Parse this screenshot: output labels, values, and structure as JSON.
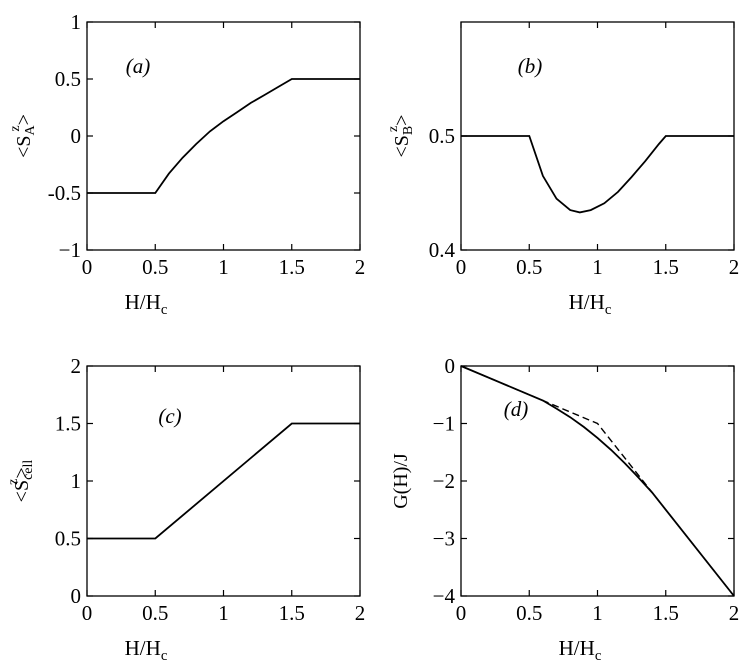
{
  "chart_data": [
    {
      "id": "a",
      "type": "line",
      "panel_label": "(a)",
      "xlabel": "H/H_c",
      "ylabel": "<S_A^z>",
      "xlim": [
        0,
        2
      ],
      "ylim": [
        -1,
        1
      ],
      "xticks": [
        0,
        0.5,
        1,
        1.5,
        2
      ],
      "yticks": [
        -1,
        -0.5,
        0,
        0.5,
        1
      ],
      "xtick_labels": [
        "0",
        "0.5",
        "1",
        "1.5",
        "2"
      ],
      "ytick_labels": [
        "−1",
        "-0.5",
        "0",
        "0.5",
        "1"
      ],
      "series": [
        {
          "style": "solid",
          "x": [
            0,
            0.5,
            0.6,
            0.7,
            0.8,
            0.9,
            1.0,
            1.1,
            1.2,
            1.3,
            1.4,
            1.5,
            2.0
          ],
          "y": [
            -0.5,
            -0.5,
            -0.33,
            -0.19,
            -0.07,
            0.04,
            0.13,
            0.21,
            0.29,
            0.36,
            0.43,
            0.5,
            0.5
          ]
        }
      ]
    },
    {
      "id": "b",
      "type": "line",
      "panel_label": "(b)",
      "xlabel": "H/H_c",
      "ylabel": "<S_B^z>",
      "xlim": [
        0,
        2
      ],
      "ylim": [
        0.4,
        0.6
      ],
      "xticks": [
        0,
        0.5,
        1,
        1.5,
        2
      ],
      "yticks": [
        0.4,
        0.5
      ],
      "xtick_labels": [
        "0",
        "0.5",
        "1",
        "1.5",
        "2"
      ],
      "ytick_labels": [
        "0.4",
        "0.5"
      ],
      "series": [
        {
          "style": "solid",
          "x": [
            0,
            0.5,
            0.6,
            0.7,
            0.8,
            0.87,
            0.95,
            1.05,
            1.15,
            1.25,
            1.35,
            1.45,
            1.5,
            2.0
          ],
          "y": [
            0.5,
            0.5,
            0.465,
            0.445,
            0.435,
            0.433,
            0.435,
            0.441,
            0.451,
            0.464,
            0.478,
            0.493,
            0.5,
            0.5
          ]
        }
      ]
    },
    {
      "id": "c",
      "type": "line",
      "panel_label": "(c)",
      "xlabel": "H/H_c",
      "ylabel": "<S_cell^z>",
      "xlim": [
        0,
        2
      ],
      "ylim": [
        0,
        2
      ],
      "xticks": [
        0,
        0.5,
        1,
        1.5,
        2
      ],
      "yticks": [
        0,
        0.5,
        1,
        1.5,
        2
      ],
      "xtick_labels": [
        "0",
        "0.5",
        "1",
        "1.5",
        "2"
      ],
      "ytick_labels": [
        "0",
        "0.5",
        "1",
        "1.5",
        "2"
      ],
      "series": [
        {
          "style": "solid",
          "x": [
            0,
            0.5,
            1.5,
            2.0
          ],
          "y": [
            0.5,
            0.5,
            1.5,
            1.5
          ]
        }
      ]
    },
    {
      "id": "d",
      "type": "line",
      "panel_label": "(d)",
      "xlabel": "H/H_c",
      "ylabel": "G(H)/J",
      "xlim": [
        0,
        2
      ],
      "ylim": [
        -4,
        0
      ],
      "xticks": [
        0,
        0.5,
        1,
        1.5,
        2
      ],
      "yticks": [
        -4,
        -3,
        -2,
        -1,
        0
      ],
      "xtick_labels": [
        "0",
        "0.5",
        "1",
        "1.5",
        "2"
      ],
      "ytick_labels": [
        "−4",
        "−3",
        "−2",
        "−1",
        "0"
      ],
      "series": [
        {
          "style": "solid",
          "x": [
            0,
            0.5,
            0.6,
            0.7,
            0.8,
            0.9,
            1.0,
            1.1,
            1.2,
            1.3,
            1.4,
            1.5,
            2.0
          ],
          "y": [
            0,
            -0.5,
            -0.6,
            -0.74,
            -0.89,
            -1.06,
            -1.25,
            -1.46,
            -1.69,
            -1.94,
            -2.2,
            -2.5,
            -4.0
          ]
        },
        {
          "style": "dashed",
          "x": [
            0,
            0.5,
            1.0,
            1.5,
            2.0
          ],
          "y": [
            0,
            -0.5,
            -1.0,
            -2.5,
            -4.0
          ]
        }
      ]
    }
  ]
}
